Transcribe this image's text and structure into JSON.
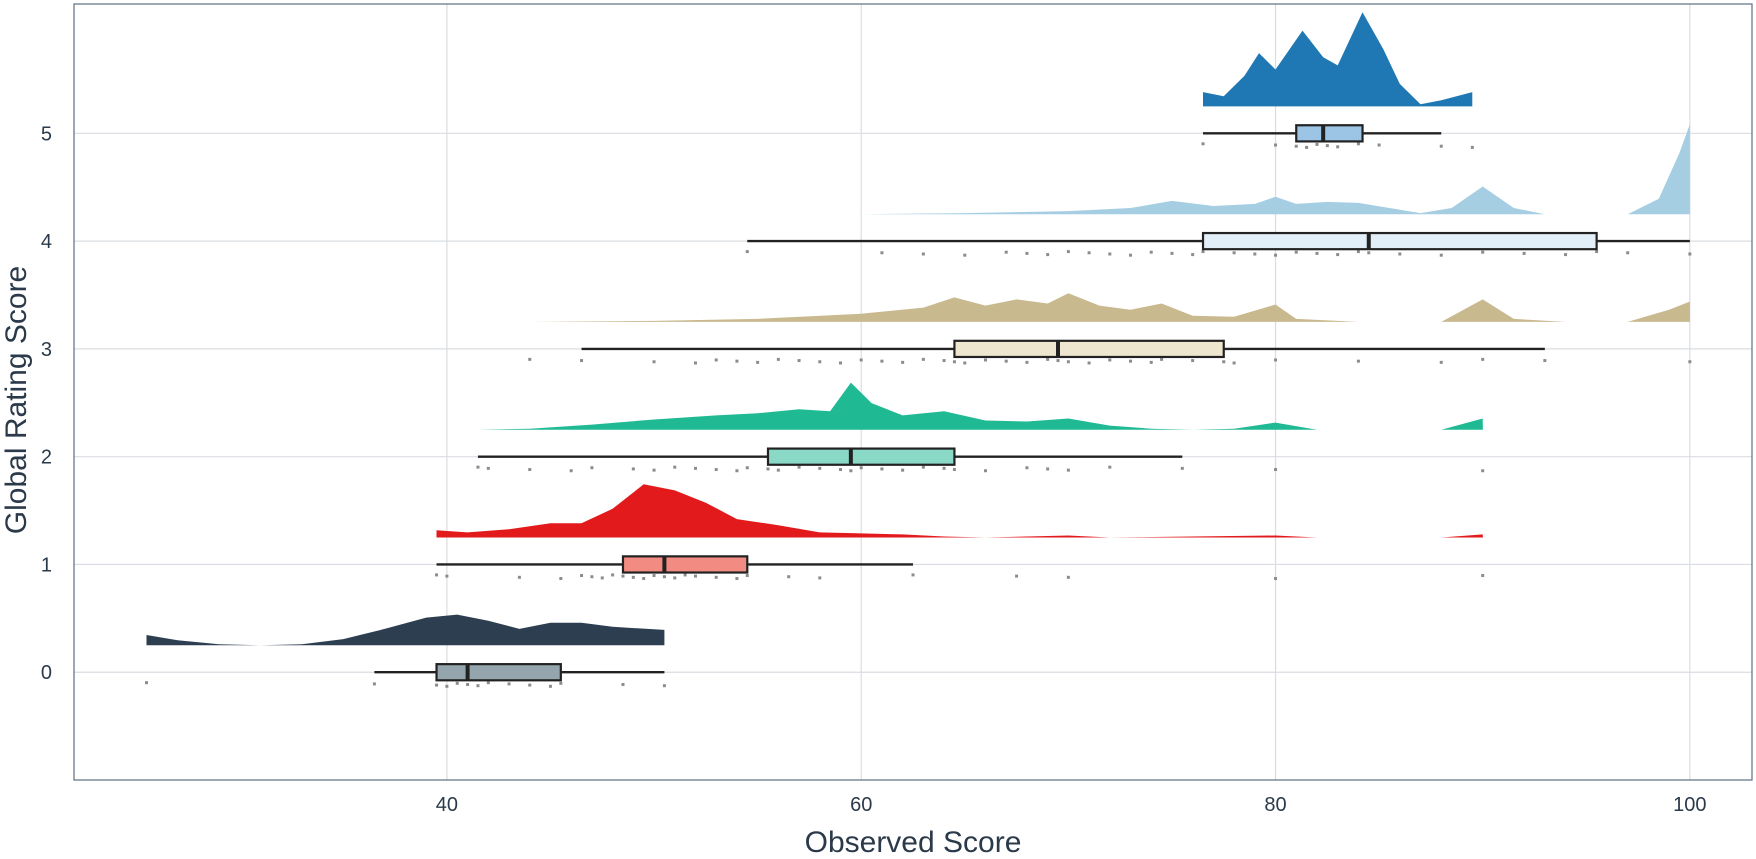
{
  "chart_data": {
    "type": "raincloud",
    "title": "",
    "xlabel": "Observed Score",
    "ylabel": "Global Rating Score",
    "xlim": [
      22,
      103
    ],
    "ylim": [
      -1.0,
      6.2
    ],
    "x_ticks": [
      40,
      60,
      80,
      100
    ],
    "y_ticks": [
      0,
      1,
      2,
      3,
      4,
      5
    ],
    "grid": true,
    "groups": [
      {
        "name": "0",
        "y": 0,
        "density_color": "#2c3e50",
        "box_color": "#95a5ad",
        "box": {
          "min": 36.5,
          "q1": 39.5,
          "median": 41.0,
          "q3": 45.5,
          "max": 50.5
        },
        "density": [
          [
            25.5,
            0.1
          ],
          [
            27,
            0.05
          ],
          [
            29,
            0.01
          ],
          [
            31,
            0.0
          ],
          [
            33,
            0.01
          ],
          [
            35,
            0.06
          ],
          [
            37,
            0.16
          ],
          [
            39,
            0.27
          ],
          [
            40.5,
            0.3
          ],
          [
            42,
            0.24
          ],
          [
            43.5,
            0.16
          ],
          [
            45,
            0.22
          ],
          [
            46.5,
            0.22
          ],
          [
            48,
            0.18
          ],
          [
            50.5,
            0.15
          ]
        ],
        "points": [
          25.5,
          36.5,
          39.5,
          40,
          40.5,
          41,
          41.5,
          42,
          43,
          44,
          45,
          45.5,
          48.5,
          50.5
        ]
      },
      {
        "name": "1",
        "y": 1,
        "density_color": "#e31a1c",
        "box_color": "#f28b82",
        "box": {
          "min": 39.5,
          "q1": 48.5,
          "median": 50.5,
          "q3": 54.5,
          "max": 62.5
        },
        "density": [
          [
            39.5,
            0.07
          ],
          [
            41,
            0.05
          ],
          [
            43,
            0.08
          ],
          [
            45,
            0.14
          ],
          [
            46.5,
            0.14
          ],
          [
            48,
            0.28
          ],
          [
            49.5,
            0.52
          ],
          [
            51,
            0.46
          ],
          [
            52.5,
            0.34
          ],
          [
            54,
            0.18
          ],
          [
            56,
            0.12
          ],
          [
            58,
            0.05
          ],
          [
            60,
            0.04
          ],
          [
            62,
            0.03
          ],
          [
            64,
            0.01
          ],
          [
            66,
            0.0
          ],
          [
            68,
            0.01
          ],
          [
            70,
            0.02
          ],
          [
            72,
            0.0
          ],
          [
            80,
            0.02
          ],
          [
            82,
            0.0
          ],
          [
            88,
            0.0
          ],
          [
            90,
            0.03
          ],
          [
            90.01,
            0.0
          ]
        ],
        "points": [
          39.5,
          40,
          43.5,
          45.5,
          46.5,
          47,
          47.5,
          48,
          48.5,
          49,
          49.5,
          50,
          50.5,
          51,
          51.5,
          52,
          53,
          54,
          54.5,
          56.5,
          58,
          62.5,
          67.5,
          70,
          80,
          90
        ]
      },
      {
        "name": "2",
        "y": 2,
        "density_color": "#1fba94",
        "box_color": "#8ad9c7",
        "box": {
          "min": 41.5,
          "q1": 55.5,
          "median": 59.5,
          "q3": 64.5,
          "max": 75.5
        },
        "density": [
          [
            41.5,
            0.0
          ],
          [
            44,
            0.01
          ],
          [
            47,
            0.05
          ],
          [
            50,
            0.1
          ],
          [
            53,
            0.14
          ],
          [
            55,
            0.16
          ],
          [
            57,
            0.2
          ],
          [
            58.5,
            0.18
          ],
          [
            59.5,
            0.46
          ],
          [
            60.5,
            0.26
          ],
          [
            62,
            0.14
          ],
          [
            64,
            0.18
          ],
          [
            66,
            0.09
          ],
          [
            68,
            0.08
          ],
          [
            70,
            0.11
          ],
          [
            72,
            0.04
          ],
          [
            74,
            0.01
          ],
          [
            76,
            0.0
          ],
          [
            78,
            0.01
          ],
          [
            80,
            0.07
          ],
          [
            82,
            0.0
          ],
          [
            88,
            0.0
          ],
          [
            90,
            0.11
          ],
          [
            90.01,
            0.0
          ]
        ],
        "points": [
          41.5,
          42,
          44,
          46,
          47,
          49,
          50,
          51,
          52,
          53,
          54,
          54.5,
          55.5,
          56,
          57,
          58,
          59,
          59.5,
          60,
          61,
          62,
          63,
          64,
          64.5,
          66,
          68,
          69,
          70,
          72,
          75.5,
          80,
          90
        ]
      },
      {
        "name": "3",
        "y": 3,
        "density_color": "#c9b98f",
        "box_color": "#efe6cf",
        "box": {
          "min": 46.5,
          "q1": 64.5,
          "median": 69.5,
          "q3": 77.5,
          "max": 93.0
        },
        "density": [
          [
            44,
            0.0
          ],
          [
            50,
            0.01
          ],
          [
            55,
            0.03
          ],
          [
            60,
            0.08
          ],
          [
            63,
            0.14
          ],
          [
            64.5,
            0.24
          ],
          [
            66,
            0.16
          ],
          [
            67.5,
            0.22
          ],
          [
            69,
            0.18
          ],
          [
            70,
            0.28
          ],
          [
            71.5,
            0.16
          ],
          [
            73,
            0.12
          ],
          [
            74.5,
            0.18
          ],
          [
            76,
            0.06
          ],
          [
            78,
            0.05
          ],
          [
            80,
            0.17
          ],
          [
            81,
            0.03
          ],
          [
            84,
            0.0
          ],
          [
            88,
            0.0
          ],
          [
            90,
            0.22
          ],
          [
            91.5,
            0.03
          ],
          [
            94,
            0.0
          ],
          [
            97,
            0.0
          ],
          [
            99,
            0.12
          ],
          [
            100,
            0.2
          ],
          [
            100,
            0.0
          ]
        ],
        "points": [
          44,
          46.5,
          50,
          52,
          53,
          54,
          55,
          56,
          57,
          58,
          59,
          60,
          61,
          62,
          63,
          64,
          64.5,
          65,
          66,
          67,
          68,
          69,
          69.5,
          70,
          71,
          72,
          73,
          74,
          74.5,
          76,
          77.5,
          78,
          80,
          84,
          88,
          90,
          93,
          100
        ]
      },
      {
        "name": "4",
        "y": 4,
        "density_color": "#a6cee3",
        "box_color": "#e2eff8",
        "box": {
          "min": 54.5,
          "q1": 76.5,
          "median": 84.5,
          "q3": 95.5,
          "max": 100
        },
        "density": [
          [
            54.5,
            0.0
          ],
          [
            60,
            0.0
          ],
          [
            65,
            0.01
          ],
          [
            70,
            0.03
          ],
          [
            73,
            0.06
          ],
          [
            75,
            0.13
          ],
          [
            77,
            0.08
          ],
          [
            79,
            0.1
          ],
          [
            80,
            0.17
          ],
          [
            81,
            0.1
          ],
          [
            82.5,
            0.12
          ],
          [
            84,
            0.11
          ],
          [
            85.5,
            0.06
          ],
          [
            87,
            0.01
          ],
          [
            88.5,
            0.06
          ],
          [
            90,
            0.27
          ],
          [
            91.5,
            0.06
          ],
          [
            93,
            0.0
          ],
          [
            97,
            0.0
          ],
          [
            98.5,
            0.15
          ],
          [
            99.5,
            0.6
          ],
          [
            100,
            0.88
          ],
          [
            100,
            0.0
          ]
        ],
        "points": [
          54.5,
          61,
          63,
          65,
          67,
          68,
          69,
          70,
          71,
          72,
          73,
          74,
          75,
          76,
          76.5,
          78,
          79,
          80,
          81,
          82,
          83,
          84,
          84.5,
          86,
          88,
          90,
          92,
          94,
          95.5,
          97,
          100
        ]
      },
      {
        "name": "5",
        "y": 5,
        "density_color": "#1f78b4",
        "box_color": "#9cc4e4",
        "box": {
          "min": 76.5,
          "q1": 81.0,
          "median": 82.3,
          "q3": 84.2,
          "max": 88.0
        },
        "density": [
          [
            76.5,
            0.14
          ],
          [
            77.5,
            0.1
          ],
          [
            78.5,
            0.3
          ],
          [
            79.2,
            0.52
          ],
          [
            80,
            0.36
          ],
          [
            81.3,
            0.74
          ],
          [
            82.3,
            0.48
          ],
          [
            83,
            0.4
          ],
          [
            84.2,
            0.92
          ],
          [
            85.2,
            0.56
          ],
          [
            86,
            0.22
          ],
          [
            87,
            0.02
          ],
          [
            88,
            0.06
          ],
          [
            89.5,
            0.14
          ]
        ],
        "points": [
          76.5,
          80,
          81,
          81.5,
          82,
          82.5,
          83,
          84,
          85,
          88,
          89.5
        ]
      }
    ]
  }
}
